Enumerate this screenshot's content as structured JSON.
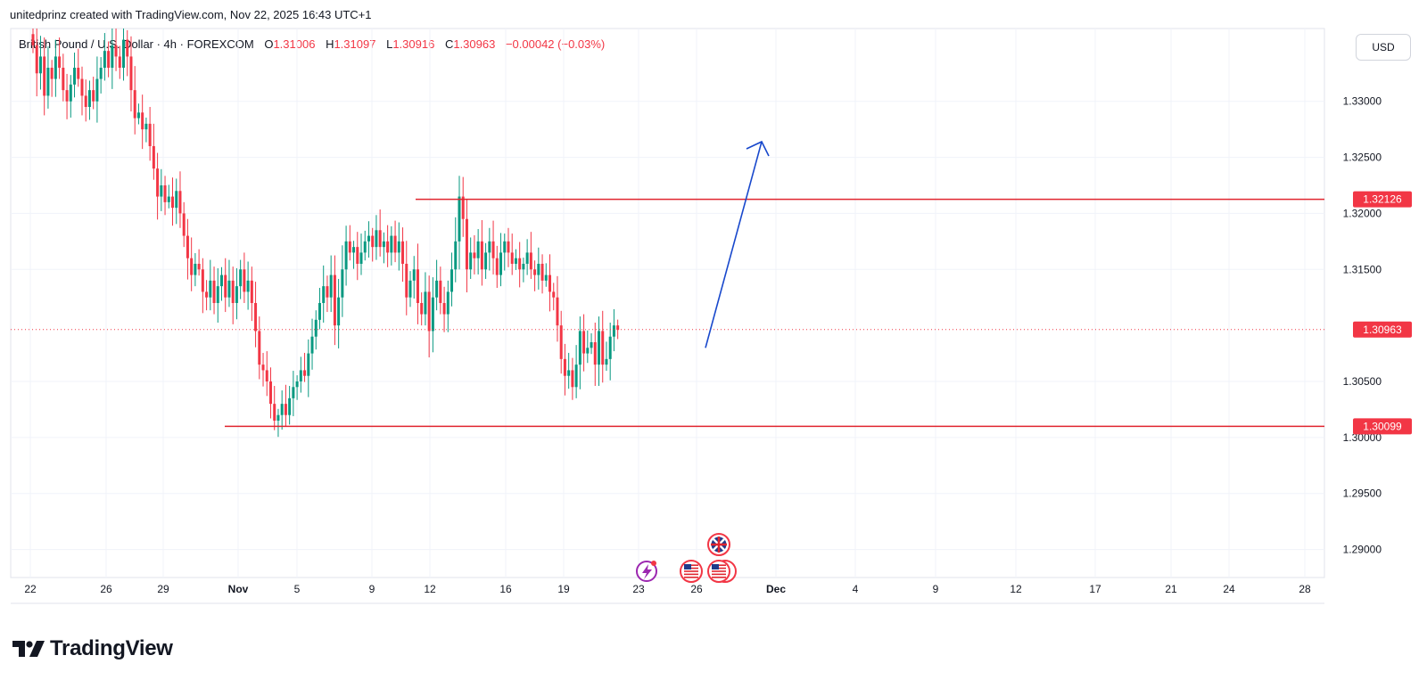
{
  "header": {
    "credit": "unitedprinz created with TradingView.com, Nov 22, 2025 16:43 UTC+1"
  },
  "legend": {
    "symbol": "British Pound / U.S. Dollar · 4h · FOREXCOM",
    "open_label": "O",
    "open": "1.31006",
    "high_label": "H",
    "high": "1.31097",
    "low_label": "L",
    "low": "1.30916",
    "close_label": "C",
    "close": "1.30963",
    "change": "−0.00042 (−0.03%)"
  },
  "currency_button": "USD",
  "brand": {
    "name": "TradingView"
  },
  "colors": {
    "up": "#089981",
    "down": "#f23645",
    "level_line": "#e0252f",
    "arrow": "#1848cc",
    "grid": "#f0f3fa",
    "price_tag": "#f23645"
  },
  "chart_data": {
    "type": "candlestick",
    "symbol": "GBPUSD",
    "timeframe": "4h",
    "ylim": [
      1.2875,
      1.3365
    ],
    "y_ticks": [
      "1.33000",
      "1.32500",
      "1.32000",
      "1.31500",
      "1.30500",
      "1.30000",
      "1.29500",
      "1.29000"
    ],
    "x_ticks": [
      "22",
      "26",
      "29",
      "Nov",
      "5",
      "9",
      "12",
      "16",
      "19",
      "23",
      "26",
      "Dec",
      "4",
      "9",
      "12",
      "17",
      "21",
      "24",
      "28"
    ],
    "grid": true,
    "horizontal_levels": [
      {
        "label": "1.32126",
        "value": 1.32126
      },
      {
        "label": "1.30099",
        "value": 1.30099
      }
    ],
    "last_price": {
      "label": "1.30963",
      "value": 1.30963
    },
    "projection_arrow": {
      "from": 1.308,
      "to": 1.3264,
      "direction": "up"
    },
    "event_icons": [
      "uk-flag-icon",
      "us-flag-icon",
      "us-flag-icon",
      "alert-bolt-icon"
    ],
    "closes": [
      1.335,
      1.3325,
      1.334,
      1.3305,
      1.333,
      1.332,
      1.334,
      1.333,
      1.331,
      1.33,
      1.3315,
      1.333,
      1.332,
      1.3305,
      1.3295,
      1.331,
      1.33,
      1.332,
      1.333,
      1.3345,
      1.333,
      1.335,
      1.334,
      1.333,
      1.3355,
      1.334,
      1.331,
      1.3285,
      1.329,
      1.3275,
      1.328,
      1.326,
      1.324,
      1.3215,
      1.3225,
      1.321,
      1.3215,
      1.3205,
      1.322,
      1.32,
      1.318,
      1.316,
      1.3145,
      1.3155,
      1.315,
      1.313,
      1.3125,
      1.314,
      1.312,
      1.3135,
      1.3145,
      1.3125,
      1.314,
      1.312,
      1.3135,
      1.315,
      1.313,
      1.314,
      1.312,
      1.3095,
      1.3065,
      1.306,
      1.305,
      1.303,
      1.3015,
      1.302,
      1.303,
      1.302,
      1.3035,
      1.3045,
      1.305,
      1.306,
      1.3055,
      1.3075,
      1.309,
      1.3105,
      1.312,
      1.3135,
      1.3125,
      1.3145,
      1.31,
      1.3125,
      1.315,
      1.3175,
      1.3165,
      1.317,
      1.3155,
      1.3165,
      1.3175,
      1.318,
      1.317,
      1.3185,
      1.317,
      1.3175,
      1.3165,
      1.318,
      1.3165,
      1.3175,
      1.3155,
      1.3125,
      1.314,
      1.315,
      1.312,
      1.311,
      1.313,
      1.3095,
      1.3125,
      1.314,
      1.312,
      1.311,
      1.313,
      1.315,
      1.3175,
      1.3215,
      1.3195,
      1.315,
      1.3165,
      1.316,
      1.3175,
      1.315,
      1.3165,
      1.3175,
      1.316,
      1.3145,
      1.3165,
      1.3175,
      1.3165,
      1.3155,
      1.316,
      1.315,
      1.3155,
      1.3165,
      1.315,
      1.3145,
      1.3155,
      1.314,
      1.3145,
      1.313,
      1.3125,
      1.31,
      1.307,
      1.3055,
      1.306,
      1.3045,
      1.3065,
      1.3095,
      1.3075,
      1.308,
      1.3085,
      1.3065,
      1.3095,
      1.3065,
      1.307,
      1.309,
      1.31,
      1.3096
    ]
  }
}
